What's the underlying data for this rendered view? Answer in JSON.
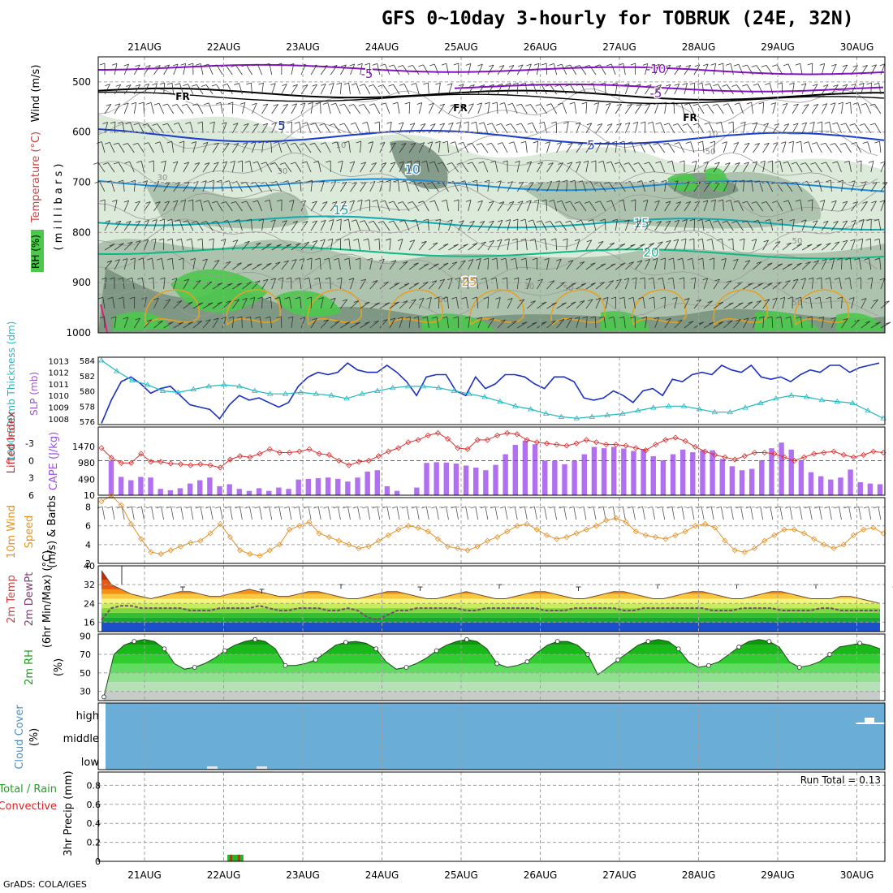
{
  "header": {
    "title": "GFS 0~10day 3-hourly for TOBRUK (24E, 32N)",
    "credit": "GrADS: COLA/IGES"
  },
  "dates": [
    "21AUG",
    "22AUG",
    "23AUG",
    "24AUG",
    "25AUG",
    "26AUG",
    "27AUG",
    "28AUG",
    "29AUG",
    "30AUG"
  ],
  "colors": {
    "purple": "#8a10c8",
    "blue": "#1a3ccc",
    "cyan": "#1a8cd8",
    "teal": "#12a8b0",
    "green_line": "#10b888",
    "orange": "#e8a020",
    "rh_dark": "#7a9480",
    "rh_mid": "#a8bfa8",
    "rh_light": "#d8e8d6",
    "rh_green": "#4cc84c",
    "slp": "#1a30c0",
    "thick": "#20b8c0",
    "cape": "#b070f0",
    "li": "#dd2e2e",
    "wind10": "#e89020",
    "cloud": "#6aaed8"
  },
  "chart_data": [
    {
      "type": "contour",
      "panel": "upper-air",
      "ylabel_rh": "RH (%)",
      "ylabel_temp": "Temperature (°C)",
      "ylabel_wind": "Wind (m/s)",
      "ylabel_units": "( m i l l i b a r s )",
      "levels": [
        "500",
        "600",
        "700",
        "800",
        "900",
        "1000"
      ],
      "level_values": [
        500,
        600,
        700,
        800,
        900,
        1000
      ],
      "ylim": [
        450,
        1000
      ],
      "isotherm_labels": [
        "-5",
        "-10",
        "-5",
        "FR",
        "FR",
        "FR",
        "5",
        "5",
        "10",
        "15",
        "15",
        "20",
        "25"
      ],
      "rh_labels": [
        "10",
        "10",
        "30",
        "30",
        "30",
        "50",
        "30",
        "50",
        "30",
        "50",
        "50"
      ]
    },
    {
      "type": "line",
      "panel": "slp-thickness",
      "ylabel_left": "1000-500mb Thickness (dm)",
      "ylabel_right": "SLP (mb)",
      "left_ticks": [
        "584",
        "582",
        "580",
        "578",
        "576"
      ],
      "left_range": [
        576,
        584
      ],
      "right_ticks": [
        "1013",
        "1012",
        "1011",
        "1010",
        "1009",
        "1008"
      ],
      "right_range": [
        1007.5,
        1013.3
      ],
      "slp": [
        1007.6,
        1009.6,
        1011.2,
        1011.6,
        1011.0,
        1010.2,
        1010.6,
        1010.8,
        1010.0,
        1009.2,
        1009.0,
        1008.8,
        1008.0,
        1009.2,
        1010.0,
        1009.6,
        1009.8,
        1009.4,
        1009.0,
        1009.4,
        1010.8,
        1011.6,
        1012.0,
        1011.8,
        1012.0,
        1012.8,
        1012.2,
        1012.0,
        1012.0,
        1012.6,
        1012.0,
        1011.2,
        1010.0,
        1011.6,
        1011.8,
        1011.8,
        1010.4,
        1010.0,
        1011.6,
        1010.6,
        1011.0,
        1011.8,
        1011.8,
        1011.6,
        1011.0,
        1010.6,
        1011.6,
        1011.6,
        1011.2,
        1009.8,
        1009.6,
        1009.8,
        1010.4,
        1010.0,
        1009.4,
        1010.4,
        1010.6,
        1010.0,
        1011.4,
        1011.2,
        1011.8,
        1012.0,
        1011.8,
        1012.6,
        1012.2,
        1012.0,
        1012.6,
        1011.6,
        1011.4,
        1011.6,
        1011.2,
        1011.8,
        1012.2,
        1012.0,
        1012.6,
        1012.6,
        1012.0,
        1012.4,
        1012.6,
        1012.8
      ],
      "thickness": [
        584.0,
        582.6,
        581.4,
        580.8,
        580.0,
        579.8,
        580.2,
        580.6,
        580.8,
        580.6,
        580.0,
        579.6,
        579.6,
        579.8,
        579.6,
        579.4,
        579.0,
        579.6,
        580.0,
        580.4,
        580.6,
        580.6,
        580.4,
        580.0,
        579.6,
        579.2,
        578.6,
        578.0,
        577.6,
        577.0,
        576.6,
        576.4,
        576.6,
        576.8,
        577.0,
        577.4,
        577.8,
        578.0,
        578.0,
        577.6,
        577.2,
        577.2,
        577.8,
        578.4,
        579.0,
        579.4,
        579.2,
        578.8,
        578.6,
        578.4,
        577.4,
        576.4
      ]
    },
    {
      "type": "bar",
      "panel": "cape-li",
      "ylabel_left": "Lifted Index",
      "ylabel_right": "CAPE (J/kg)",
      "left_ticks": [
        "-3",
        "0",
        "3",
        "6"
      ],
      "li_range": [
        6,
        -5
      ],
      "right_ticks": [
        "1470",
        "980",
        "490",
        "10"
      ],
      "cape_range": [
        10,
        1960
      ],
      "cape": [
        1050,
        560,
        460,
        560,
        540,
        200,
        160,
        220,
        360,
        460,
        540,
        280,
        340,
        200,
        140,
        220,
        140,
        240,
        200,
        480,
        500,
        520,
        540,
        500,
        420,
        540,
        720,
        760,
        280,
        140,
        20,
        240,
        980,
        1000,
        990,
        960,
        900,
        840,
        760,
        920,
        1240,
        1520,
        1650,
        1540,
        1050,
        1040,
        940,
        1040,
        1240,
        1460,
        1420,
        1460,
        1410,
        1340,
        1400,
        1180,
        1060,
        1240,
        1380,
        1300,
        1360,
        1360,
        1100,
        880,
        760,
        800,
        1060,
        1420,
        1590,
        1380,
        1060,
        700,
        580,
        480,
        540,
        780,
        400,
        360,
        340
      ],
      "li": [
        -2.2,
        -0.5,
        0.4,
        0.4,
        -1.2,
        0.2,
        0.2,
        0.5,
        0.6,
        0.8,
        0.6,
        0.8,
        1.2,
        -0.2,
        -0.8,
        -0.6,
        -1.2,
        -2.0,
        -1.4,
        -1.4,
        -1.6,
        -2.0,
        -1.2,
        -1.0,
        0.0,
        0.8,
        0.2,
        0.0,
        -0.8,
        -1.6,
        -2.2,
        -3.2,
        -3.6,
        -4.4,
        -4.8,
        -3.8,
        -2.2,
        -2.0,
        -3.6,
        -3.6,
        -4.4,
        -4.8,
        -4.6,
        -3.6,
        -3.2,
        -3.0,
        -2.8,
        -2.6,
        -3.0,
        -3.6,
        -3.2,
        -2.8,
        -2.8,
        -2.6,
        -2.2,
        -1.8,
        -2.8,
        -3.6,
        -4.0,
        -3.4,
        -2.4,
        -1.6,
        -1.0,
        -0.6,
        -0.2,
        -0.8,
        -1.4,
        -1.4,
        -1.2,
        -0.6,
        0.0,
        -0.6,
        -1.2,
        -1.4,
        -1.6,
        -1.0,
        -0.6,
        -1.0,
        -1.6,
        -1.4
      ]
    },
    {
      "type": "line",
      "panel": "wind10m",
      "ylabel": "10m Wind Speed & Barbs (m/s)",
      "ylabel_l1": "10m Wind",
      "ylabel_l2": "Speed",
      "ylabel_l3": "(m/s) & Barbs",
      "ticks": [
        "8",
        "6",
        "4",
        "2"
      ],
      "ylim": [
        2,
        9
      ],
      "values": [
        8.6,
        9.2,
        8.2,
        6.2,
        4.6,
        3.2,
        3.0,
        3.4,
        3.8,
        4.2,
        4.4,
        5.2,
        6.2,
        4.8,
        3.4,
        3.0,
        2.8,
        3.4,
        4.0,
        5.6,
        6.0,
        6.4,
        5.2,
        4.8,
        4.4,
        4.0,
        3.6,
        3.8,
        4.4,
        5.0,
        5.6,
        6.0,
        5.8,
        5.4,
        4.6,
        3.8,
        3.6,
        3.4,
        3.8,
        4.4,
        4.8,
        5.4,
        6.0,
        6.2,
        5.6,
        5.0,
        4.6,
        4.8,
        5.2,
        5.6,
        6.0,
        6.6,
        6.8,
        6.4,
        5.4,
        5.0,
        4.8,
        4.6,
        5.0,
        5.4,
        6.0,
        6.2,
        5.8,
        4.4,
        3.4,
        3.2,
        3.6,
        4.4,
        5.0,
        5.6,
        5.6,
        5.2,
        4.6,
        4.0,
        3.6,
        4.0,
        5.0,
        5.6,
        5.8,
        5.2
      ]
    },
    {
      "type": "area",
      "panel": "temp2m",
      "ylabel_l1": "2m Temp",
      "ylabel_l2": "2m DewPt",
      "ylabel_l3": "(6hr Min/Max) (°C)",
      "ticks": [
        "40",
        "32",
        "24",
        "16"
      ],
      "ylim": [
        12,
        40
      ],
      "temp": [
        38,
        32,
        30,
        28,
        27,
        26,
        27,
        28,
        29,
        29,
        28,
        27,
        27,
        28,
        29,
        30,
        29,
        28,
        27,
        27,
        28,
        29,
        29,
        28,
        27,
        26,
        26,
        27,
        28,
        29,
        29,
        28,
        27,
        26,
        26,
        27,
        28,
        29,
        28,
        27,
        26,
        26,
        27,
        28,
        29,
        29,
        28,
        27,
        26,
        26,
        27,
        28,
        29,
        29,
        28,
        27,
        26,
        26,
        27,
        28,
        29,
        29,
        28,
        27,
        26,
        26,
        27,
        28,
        29,
        29,
        28,
        27,
        26,
        26,
        26,
        27,
        27,
        26,
        25,
        24
      ],
      "dewpt": [
        17,
        22,
        23,
        23,
        22,
        22,
        22,
        22,
        22,
        21,
        21,
        21,
        22,
        22,
        22,
        22,
        23,
        22,
        21,
        21,
        22,
        22,
        22,
        21,
        21,
        22,
        21,
        18,
        17,
        19,
        21,
        21,
        22,
        22,
        22,
        22,
        22,
        21,
        21,
        22,
        22,
        22,
        22,
        22,
        22,
        21,
        21,
        21,
        22,
        22,
        22,
        22,
        22,
        21,
        21,
        22,
        22,
        22,
        22,
        22,
        22,
        22,
        21,
        21,
        21,
        22,
        22,
        22,
        22,
        21,
        21,
        21,
        21,
        22,
        22,
        21,
        21,
        21,
        21,
        21
      ],
      "max_marks": [
        31,
        30,
        32,
        31,
        32,
        31,
        32,
        32,
        32,
        31
      ],
      "max_value": 40
    },
    {
      "type": "area",
      "panel": "rh2m",
      "ylabel_l1": "2m RH",
      "ylabel_l2": "(%)",
      "ticks": [
        "90",
        "70",
        "50",
        "30"
      ],
      "ylim": [
        20,
        92
      ],
      "values": [
        24,
        70,
        80,
        84,
        86,
        84,
        76,
        60,
        54,
        56,
        60,
        66,
        74,
        80,
        84,
        86,
        84,
        76,
        58,
        58,
        60,
        64,
        72,
        80,
        83,
        84,
        82,
        76,
        62,
        54,
        56,
        60,
        66,
        74,
        80,
        84,
        86,
        84,
        76,
        60,
        56,
        58,
        62,
        72,
        80,
        84,
        84,
        80,
        70,
        48,
        56,
        64,
        72,
        80,
        84,
        86,
        84,
        76,
        62,
        56,
        58,
        62,
        70,
        78,
        84,
        86,
        84,
        78,
        62,
        56,
        58,
        62,
        70,
        78,
        80,
        82,
        80,
        76
      ]
    },
    {
      "type": "bar",
      "panel": "cloud",
      "ylabel_l1": "Cloud Cover",
      "ylabel_l2": "(%)",
      "layers": [
        "high",
        "middle",
        "low"
      ],
      "coverage_pct": 100
    },
    {
      "type": "bar",
      "panel": "precip",
      "ylabel_l1": "Total / Rain",
      "ylabel_l2": "Convective",
      "ylabel_l3": "3hr Precip (mm)",
      "run_total": "Run Total = 0.13",
      "ticks": [
        "0.8",
        "0.6",
        "0.4",
        "0.2",
        "0"
      ],
      "ylim": [
        0,
        0.94
      ],
      "bar_day_offsets": [
        1.15,
        1.25
      ],
      "bar_values": [
        0.07,
        0.07
      ]
    }
  ]
}
